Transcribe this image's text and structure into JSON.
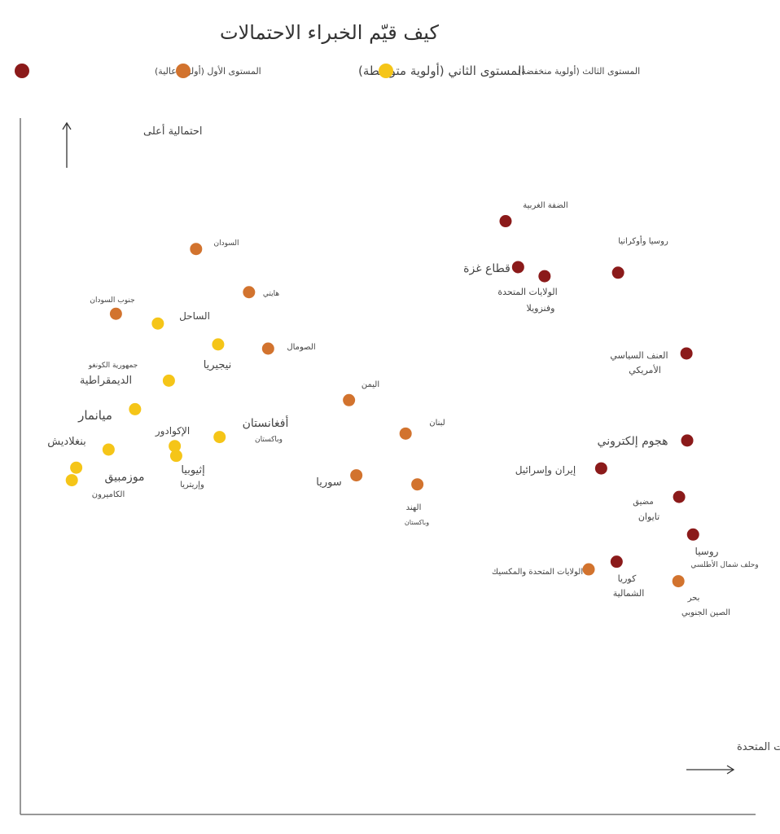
{
  "chart_data": {
    "type": "scatter",
    "title": "كيف قيّم الخبراء الاحتمالات",
    "ylabel": "احتمالية أعلى",
    "xlabel": "تأثير أكبر على مصالح الولايات المتحدة",
    "xlim": [
      0,
      100
    ],
    "ylim": [
      0,
      100
    ],
    "grid": false,
    "legend_placement": "top",
    "series": [
      {
        "name": "المستوى الأول (أولوية عالية)",
        "color": "#8b1a1a"
      },
      {
        "name": "المستوى الثاني (أولوية متوسطة)",
        "color": "#d2732e"
      },
      {
        "name": "المستوى الثالث (أولوية منخفضة)",
        "color": "#f5c518"
      }
    ],
    "points": [
      {
        "series": 0,
        "x": 66.0,
        "y": 85.2,
        "label": [
          "الضفة الغربية"
        ]
      },
      {
        "series": 0,
        "x": 67.7,
        "y": 78.6,
        "label": [
          "قطاع غزة"
        ]
      },
      {
        "series": 0,
        "x": 71.3,
        "y": 77.3,
        "label": [
          "الولايات المتحدة",
          "وفنزويلا"
        ]
      },
      {
        "series": 0,
        "x": 81.3,
        "y": 77.8,
        "label": [
          "روسيا وأوكرانيا"
        ]
      },
      {
        "series": 0,
        "x": 90.6,
        "y": 66.2,
        "label": [
          "العنف السياسي",
          "الأمريكي"
        ]
      },
      {
        "series": 0,
        "x": 90.7,
        "y": 53.7,
        "label": [
          "هجوم إلكتروني"
        ]
      },
      {
        "series": 0,
        "x": 79.0,
        "y": 49.7,
        "label": [
          "إيران وإسرائيل"
        ]
      },
      {
        "series": 0,
        "x": 89.6,
        "y": 45.6,
        "label": [
          "مضيق",
          "تايوان"
        ]
      },
      {
        "series": 0,
        "x": 91.5,
        "y": 40.2,
        "label": [
          "روسيا",
          "وحلف شمال الأطلسي"
        ]
      },
      {
        "series": 0,
        "x": 81.1,
        "y": 36.3,
        "label": [
          "كوريا",
          "الشمالية"
        ]
      },
      {
        "series": 1,
        "x": 23.9,
        "y": 81.2,
        "label": [
          "السودان"
        ]
      },
      {
        "series": 1,
        "x": 31.1,
        "y": 75.0,
        "label": [
          "هايتي"
        ]
      },
      {
        "series": 1,
        "x": 13.0,
        "y": 71.9,
        "label": [
          "جنوب السودان"
        ]
      },
      {
        "series": 1,
        "x": 33.7,
        "y": 66.9,
        "label": [
          "الصومال"
        ]
      },
      {
        "series": 1,
        "x": 44.7,
        "y": 59.5,
        "label": [
          "اليمن"
        ]
      },
      {
        "series": 1,
        "x": 52.4,
        "y": 54.7,
        "label": [
          "لبنان"
        ]
      },
      {
        "series": 1,
        "x": 45.7,
        "y": 48.7,
        "label": [
          "سوريا"
        ]
      },
      {
        "series": 1,
        "x": 54.0,
        "y": 47.4,
        "label": [
          "الهند",
          "وباكستان"
        ]
      },
      {
        "series": 1,
        "x": 77.3,
        "y": 35.2,
        "label": [
          "الولايات المتحدة والمكسيك"
        ]
      },
      {
        "series": 1,
        "x": 89.5,
        "y": 33.5,
        "label": [
          "بحر",
          "الصين الجنوبي"
        ]
      },
      {
        "series": 2,
        "x": 18.7,
        "y": 70.5,
        "label": [
          "الساحل"
        ]
      },
      {
        "series": 2,
        "x": 26.9,
        "y": 67.5,
        "label": [
          "نيجيريا"
        ]
      },
      {
        "series": 2,
        "x": 20.2,
        "y": 62.3,
        "label": [
          "جمهورية الكونغو",
          "الديمقراطية"
        ]
      },
      {
        "series": 2,
        "x": 15.6,
        "y": 58.2,
        "label": [
          "ميانمار"
        ]
      },
      {
        "series": 2,
        "x": 27.1,
        "y": 54.2,
        "label": [
          "أفغانستان",
          "وباكستان"
        ]
      },
      {
        "series": 2,
        "x": 21.0,
        "y": 52.9,
        "label": [
          "الإكوادور"
        ]
      },
      {
        "series": 2,
        "x": 21.2,
        "y": 51.5,
        "label": [
          "إثيوبيا",
          "وإريتريا"
        ]
      },
      {
        "series": 2,
        "x": 12.0,
        "y": 52.4,
        "label": [
          "بنغلاديش"
        ]
      },
      {
        "series": 2,
        "x": 7.6,
        "y": 49.8,
        "label": [
          "موزمبيق"
        ]
      },
      {
        "series": 2,
        "x": 7.0,
        "y": 48.0,
        "label": [
          "الكاميرون"
        ]
      }
    ]
  }
}
